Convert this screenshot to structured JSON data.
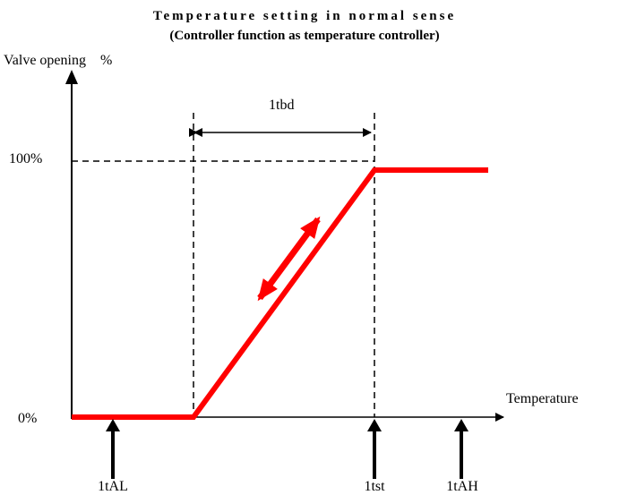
{
  "title": "Temperature setting in normal sense",
  "subtitle": "(Controller function as temperature controller)",
  "y_axis": {
    "label": "Valve opening    %",
    "top_label": "100%",
    "bottom_label": "0%"
  },
  "x_axis": {
    "label": "Temperature"
  },
  "band_label": "1tbd",
  "markers": [
    "1tAL",
    "1tst",
    "1tAH"
  ]
}
